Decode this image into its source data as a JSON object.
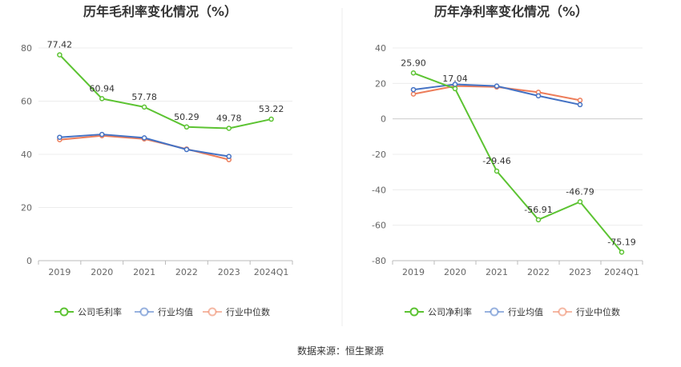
{
  "source_text": "数据来源：恒生聚源",
  "chart_data": [
    {
      "type": "line",
      "title": "历年毛利率变化情况（%）",
      "categories": [
        "2019",
        "2020",
        "2021",
        "2022",
        "2023",
        "2024Q1"
      ],
      "ylim": [
        0,
        80
      ],
      "yticks": [
        0,
        20,
        40,
        60,
        80
      ],
      "series": [
        {
          "name": "公司毛利率",
          "color": "#5cc332",
          "values": [
            77.42,
            60.94,
            57.78,
            50.29,
            49.78,
            53.22
          ],
          "labels": [
            "77.42",
            "60.94",
            "57.78",
            "50.29",
            "49.78",
            "53.22"
          ]
        },
        {
          "name": "行业均值",
          "color": "#4472c4",
          "values": [
            46.4,
            47.5,
            46.2,
            41.8,
            39.2,
            null
          ]
        },
        {
          "name": "行业中位数",
          "color": "#ed7d5a",
          "values": [
            45.5,
            47.0,
            45.8,
            42.0,
            38.0,
            null
          ]
        }
      ]
    },
    {
      "type": "line",
      "title": "历年净利率变化情况（%）",
      "categories": [
        "2019",
        "2020",
        "2021",
        "2022",
        "2023",
        "2024Q1"
      ],
      "ylim": [
        -80,
        40
      ],
      "yticks": [
        -80,
        -60,
        -40,
        -20,
        0,
        20,
        40
      ],
      "series": [
        {
          "name": "公司净利率",
          "color": "#5cc332",
          "values": [
            25.9,
            17.04,
            -29.46,
            -56.91,
            -46.79,
            -75.19
          ],
          "labels": [
            "25.90",
            "17.04",
            "-29.46",
            "-56.91",
            "-46.79",
            "-75.19"
          ]
        },
        {
          "name": "行业均值",
          "color": "#4472c4",
          "values": [
            16.5,
            19.5,
            18.5,
            13.0,
            8.0,
            null
          ]
        },
        {
          "name": "行业中位数",
          "color": "#ed7d5a",
          "values": [
            14.0,
            18.5,
            18.0,
            15.0,
            10.5,
            null
          ]
        }
      ]
    }
  ]
}
